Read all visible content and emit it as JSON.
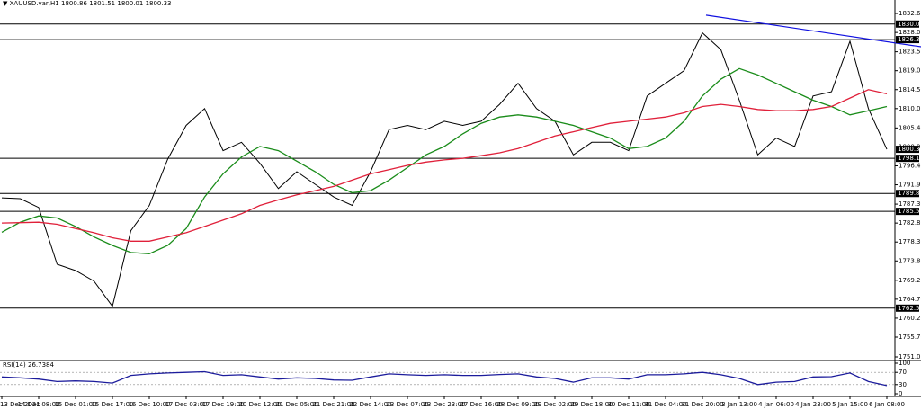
{
  "chart_data": [
    {
      "type": "line",
      "symbol": "XAUUSD.var,H1",
      "ohlc": [
        1800.86,
        1801.51,
        1800.01,
        1800.33
      ],
      "categories": [
        "13 Dec 2021",
        null,
        "14 Dec 08:00",
        null,
        "15 Dec 01:00",
        null,
        "15 Dec 17:00",
        null,
        "16 Dec 10:00",
        null,
        "17 Dec 03:00",
        null,
        "17 Dec 19:00",
        null,
        "20 Dec 12:00",
        null,
        "21 Dec 05:00",
        null,
        "21 Dec 21:00",
        null,
        "22 Dec 14:00",
        null,
        "23 Dec 07:00",
        null,
        "23 Dec 23:00",
        null,
        "27 Dec 16:00",
        null,
        "28 Dec 09:00",
        null,
        "29 Dec 02:00",
        null,
        "29 Dec 18:00",
        null,
        "30 Dec 11:00",
        null,
        "31 Dec 04:00",
        null,
        "31 Dec 20:00",
        null,
        "3 Jan 13:00",
        null,
        "4 Jan 06:00",
        null,
        "4 Jan 23:00",
        null,
        "5 Jan 15:00",
        null,
        "6 Jan 08:00"
      ],
      "series": [
        {
          "color": "#000000",
          "values": [
            1788.8,
            1788.6,
            1786.5,
            1773,
            1771.5,
            1769,
            1763,
            1781,
            1787,
            1798,
            1806,
            1810,
            1800,
            1802,
            1797,
            1791,
            1795,
            1792,
            1789,
            1787,
            1795,
            1805,
            1806,
            1805,
            1807,
            1806,
            1807,
            1811,
            1816,
            1810,
            1807,
            1799,
            1802,
            1802,
            1800,
            1813,
            1816,
            1819,
            1828,
            1824,
            1812,
            1799,
            1803,
            1801,
            1813,
            1814,
            1826,
            1810,
            1800.33
          ]
        },
        {
          "color": "#1a8c1a",
          "values": [
            1780.6,
            1783,
            1784.5,
            1784,
            1782,
            1779.5,
            1777.5,
            1775.8,
            1775.5,
            1777.5,
            1781.5,
            1789,
            1794.5,
            1798.5,
            1801,
            1800,
            1797.5,
            1795,
            1792,
            1790,
            1790.5,
            1793,
            1796,
            1799,
            1801,
            1804,
            1806.5,
            1808,
            1808.5,
            1808,
            1807,
            1806,
            1804.5,
            1803,
            1800.5,
            1801,
            1803,
            1807,
            1813,
            1817,
            1819.5,
            1818,
            1816,
            1814,
            1812,
            1810.5,
            1808.5,
            1809.5,
            1810.5
          ]
        },
        {
          "color": "#e0203a",
          "values": [
            1782.8,
            1782.9,
            1783,
            1782.5,
            1781.5,
            1780.5,
            1779.3,
            1778.5,
            1778.5,
            1779.5,
            1780.5,
            1782,
            1783.5,
            1785,
            1787,
            1788.3,
            1789.5,
            1790.5,
            1791.5,
            1793,
            1794.5,
            1795.5,
            1796.5,
            1797.3,
            1797.8,
            1798.2,
            1798.8,
            1799.5,
            1800.5,
            1802,
            1803.5,
            1804.5,
            1805.5,
            1806.5,
            1807,
            1807.5,
            1808,
            1809,
            1810.5,
            1811,
            1810.5,
            1809.8,
            1809.5,
            1809.5,
            1809.8,
            1810.5,
            1812.5,
            1814.5,
            1813.5
          ]
        }
      ],
      "ylim": [
        1750.36,
        1834.1
      ],
      "yticks": [
        {
          "value": 1832.6,
          "label": "1832.60"
        },
        1828.09,
        {
          "value": 1823.5,
          "label": "1823.50"
        },
        {
          "value": 1819,
          "label": "1819.00"
        },
        {
          "value": 1814.5,
          "label": "1814.50"
        },
        {
          "value": 1810,
          "label": "1810.00"
        },
        {
          "value": 1805.4,
          "label": "1805.40"
        },
        {
          "value": 1800.9,
          "label": "1800.90"
        },
        {
          "value": 1796.4,
          "label": "1796.40"
        },
        {
          "value": 1791.9,
          "label": "1791.90"
        },
        {
          "value": 1787.3,
          "label": "1787.30"
        },
        {
          "value": 1782.8,
          "label": "1782.80"
        },
        {
          "value": 1778.3,
          "label": "1778.30"
        },
        {
          "value": 1773.8,
          "label": "1773.80"
        },
        {
          "value": 1769.2,
          "label": "1769.20"
        },
        {
          "value": 1764.7,
          "label": "1764.70"
        },
        {
          "value": 1760.2,
          "label": "1760.20"
        },
        {
          "value": 1755.7,
          "label": "1755.70"
        },
        {
          "value": 1751,
          "label": "1751.00"
        }
      ],
      "levels": [
        1830.09,
        1826.39,
        1798.18,
        1789.83,
        1785.58,
        1762.58
      ],
      "trendline": {
        "color": "#1010e0",
        "values": [
          1832.2,
          1824.7
        ]
      }
    },
    {
      "type": "line",
      "title": "RSI(14)",
      "series": [
        {
          "color": "#1c1c9c",
          "values": [
            55,
            52,
            48,
            40,
            42,
            40,
            35,
            60,
            65,
            68,
            70,
            72,
            60,
            62,
            55,
            48,
            52,
            50,
            45,
            44,
            55,
            65,
            62,
            60,
            62,
            60,
            60,
            63,
            65,
            55,
            50,
            38,
            52,
            52,
            48,
            62,
            62,
            65,
            70,
            62,
            50,
            30,
            38,
            40,
            55,
            56,
            68,
            40,
            26.7384
          ]
        }
      ],
      "ylim": [
        -5.9,
        105.9
      ],
      "yticks": [
        0,
        30,
        70,
        100
      ]
    }
  ]
}
